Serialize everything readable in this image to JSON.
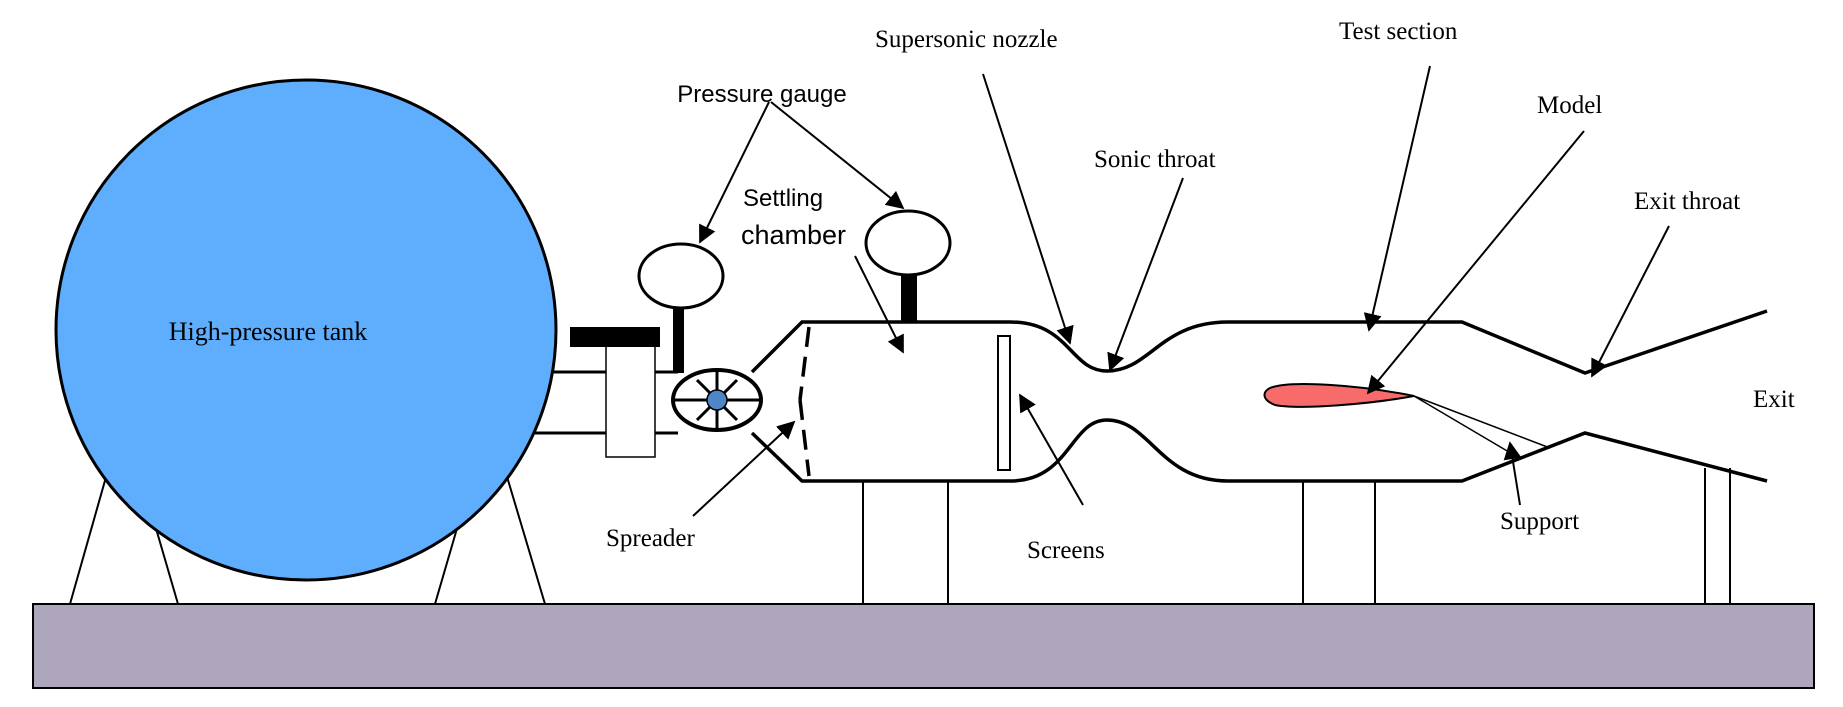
{
  "labels": {
    "tank": "High-pressure tank",
    "pressure_gauge": "Pressure gauge",
    "settling_line1": "Settling",
    "settling_line2": "chamber",
    "supersonic_nozzle": "Supersonic nozzle",
    "sonic_throat": "Sonic throat",
    "test_section": "Test section",
    "model": "Model",
    "exit_throat": "Exit throat",
    "exit": "Exit",
    "spreader": "Spreader",
    "screens": "Screens",
    "support": "Support"
  },
  "colors": {
    "tank_fill": "#5eaefd",
    "model_fill": "#f76b6b",
    "base_fill": "#aea6bd",
    "valve_hub": "#4f86c6",
    "outline": "#000000"
  }
}
